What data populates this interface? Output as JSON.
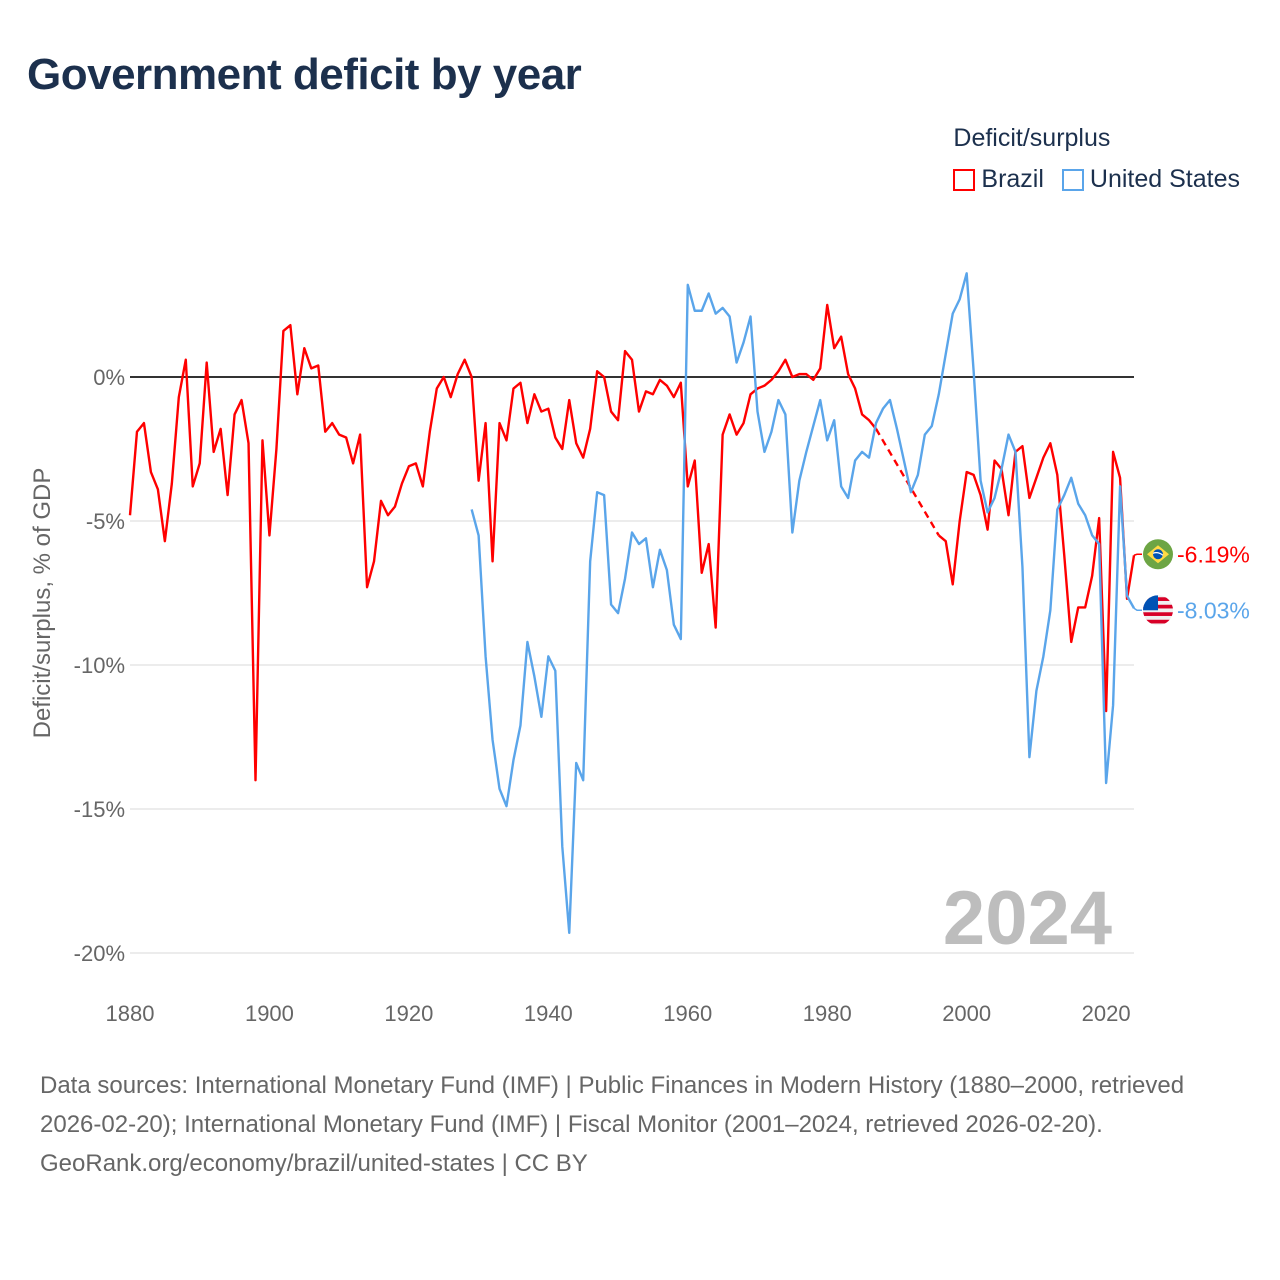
{
  "title": "Government deficit by year",
  "legend": {
    "title": "Deficit/surplus",
    "items": [
      {
        "label": "Brazil",
        "color": "#ff0000"
      },
      {
        "label": "United States",
        "color": "#5aa5ea"
      }
    ]
  },
  "footer": {
    "sources": "Data sources: International Monetary Fund (IMF) | Public Finances in Modern History (1880–2000, retrieved 2026-02-20); International Monetary Fund (IMF) | Fiscal Monitor (2001–2024, retrieved 2026-02-20).",
    "credit": "GeoRank.org/economy/brazil/united-states | CC BY"
  },
  "chart_data": {
    "type": "line",
    "title": "Government deficit by year",
    "xlabel": "",
    "ylabel": "Deficit/surplus, % of GDP",
    "xlim": [
      1880,
      2024
    ],
    "ylim": [
      -20,
      3.6
    ],
    "x_ticks": [
      "1880",
      "1900",
      "1920",
      "1940",
      "1960",
      "1980",
      "2000",
      "2020"
    ],
    "y_ticks": [
      {
        "value": 0,
        "label": "0%"
      },
      {
        "value": -5,
        "label": "-5%"
      },
      {
        "value": -10,
        "label": "-10%"
      },
      {
        "value": -15,
        "label": "-15%"
      },
      {
        "value": -20,
        "label": "-20%"
      }
    ],
    "year_watermark": "2024",
    "legend_position": "top-right",
    "series": [
      {
        "name": "Brazil",
        "color": "#ff0000",
        "start_year": 1880,
        "end_label": "-6.19%",
        "values": [
          -4.8,
          -1.9,
          -1.6,
          -3.3,
          -3.9,
          -5.7,
          -3.7,
          -0.7,
          0.6,
          -3.8,
          -3.0,
          0.5,
          -2.6,
          -1.8,
          -4.1,
          -1.3,
          -0.8,
          -2.3,
          -14.0,
          -2.2,
          -5.5,
          -2.5,
          1.6,
          1.8,
          -0.6,
          1.0,
          0.3,
          0.4,
          -1.9,
          -1.6,
          -2.0,
          -2.1,
          -3.0,
          -2.0,
          -7.3,
          -6.4,
          -4.3,
          -4.8,
          -4.5,
          -3.7,
          -3.1,
          -3.0,
          -3.8,
          -1.9,
          -0.4,
          0.0,
          -0.7,
          0.1,
          0.6,
          0.0,
          -3.6,
          -1.6,
          -6.4,
          -1.6,
          -2.2,
          -0.4,
          -0.2,
          -1.6,
          -0.6,
          -1.2,
          -1.1,
          -2.1,
          -2.5,
          -0.8,
          -2.3,
          -2.8,
          -1.8,
          0.2,
          0.0,
          -1.2,
          -1.5,
          0.9,
          0.6,
          -1.2,
          -0.5,
          -0.6,
          -0.1,
          -0.3,
          -0.7,
          -0.2,
          -3.8,
          -2.9,
          -6.8,
          -5.8,
          -8.7,
          -2.0,
          -1.3,
          -2.0,
          -1.6,
          -0.6,
          -0.4,
          -0.3,
          -0.1,
          0.2,
          0.6,
          0.0,
          0.1,
          0.1,
          -0.1,
          0.3,
          2.5,
          1.0,
          1.4,
          0.1,
          -0.4,
          -1.3,
          -1.5,
          -1.8,
          null,
          null,
          null,
          null,
          null,
          null,
          null,
          null,
          -5.5,
          -5.7,
          -7.2,
          -5.0,
          -3.3,
          -3.4,
          -4.1,
          -5.3,
          -2.9,
          -3.2,
          -4.8,
          -2.6,
          -2.4,
          -4.2,
          -3.5,
          -2.8,
          -2.3,
          -3.4,
          -6.2,
          -9.2,
          -8.0,
          -8.0,
          -6.9,
          -4.9,
          -11.6,
          -2.6,
          -3.5,
          -7.7,
          -6.19
        ]
      },
      {
        "name": "United States",
        "color": "#5aa5ea",
        "start_year": 1929,
        "end_label": "-8.03%",
        "values": [
          -4.6,
          -5.5,
          -9.7,
          -12.6,
          -14.3,
          -14.9,
          -13.3,
          -12.1,
          -9.2,
          -10.4,
          -11.8,
          -9.7,
          -10.2,
          -16.3,
          -19.3,
          -13.4,
          -14.0,
          -6.4,
          -4.0,
          -4.1,
          -7.9,
          -8.2,
          -7.0,
          -5.4,
          -5.8,
          -5.6,
          -7.3,
          -6.0,
          -6.7,
          -8.6,
          -9.1,
          3.2,
          2.3,
          2.3,
          2.9,
          2.2,
          2.4,
          2.1,
          0.5,
          1.2,
          2.1,
          -1.2,
          -2.6,
          -1.9,
          -0.8,
          -1.3,
          -5.4,
          -3.6,
          -2.6,
          -1.7,
          -0.8,
          -2.2,
          -1.5,
          -3.8,
          -4.2,
          -2.9,
          -2.6,
          -2.8,
          -1.6,
          -1.1,
          -0.8,
          -1.8,
          -2.9,
          -4.0,
          -3.4,
          -2.0,
          -1.7,
          -0.6,
          0.8,
          2.2,
          2.7,
          3.6,
          0.2,
          -3.6,
          -4.7,
          -4.2,
          -3.2,
          -2.0,
          -2.6,
          -6.6,
          -13.2,
          -10.9,
          -9.7,
          -8.1,
          -4.6,
          -4.1,
          -3.5,
          -4.4,
          -4.8,
          -5.5,
          -5.8,
          -14.1,
          -11.4,
          -3.8,
          -7.6,
          -8.03
        ]
      }
    ]
  }
}
